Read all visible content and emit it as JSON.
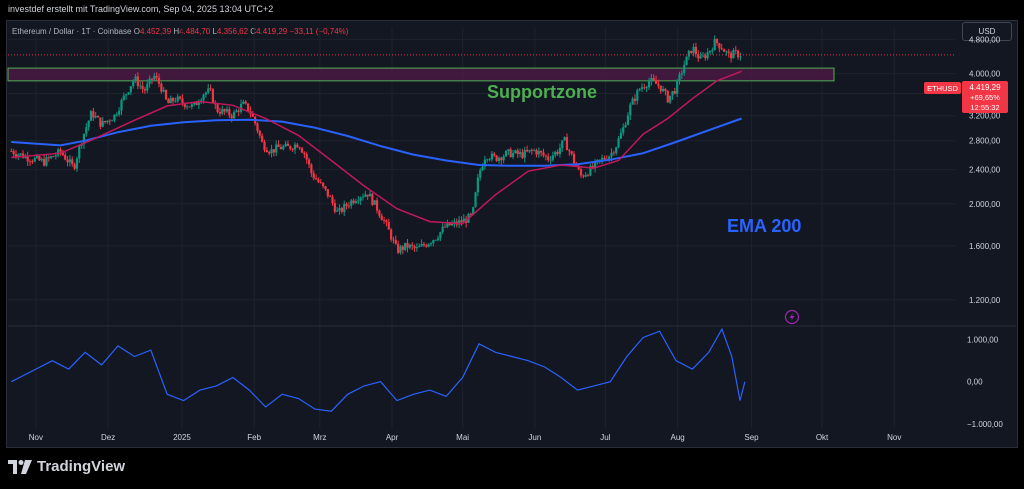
{
  "credit": "investdef erstellt mit TradingView.com, Sep 04, 2025 13:04 UTC+2",
  "symbol": {
    "name": "Ethereum / Dollar · 1T · Coinbase",
    "o_label": "O",
    "o": "4.452,39",
    "h_label": "H",
    "h": "4.484,70",
    "l_label": "L",
    "l": "4.356,62",
    "c_label": "C",
    "c": "4.419,29",
    "change": "−33,11 (−0,74%)"
  },
  "currency_button": "USD",
  "price_badge": {
    "ticker": "ETHUSD",
    "price": "4.419,29",
    "change": "+69,65%",
    "countdown": "12:55:32",
    "color": "#f23645"
  },
  "annotations": {
    "supportzone": "Supportzone",
    "ema": "EMA 200"
  },
  "brand": "TradingView",
  "colors": {
    "up": "#089981",
    "down": "#f23645",
    "ema200": "#2962ff",
    "ema50": "#c2185b",
    "oscillator": "#2962ff",
    "zone_fill": "#4a1942",
    "zone_border": "#4caf50",
    "supportzone_text": "#4caf50",
    "ema_text": "#2962ff"
  },
  "chart_data": {
    "type": "candlestick",
    "price_axis": {
      "ticks": [
        1200,
        1600,
        2000,
        2400,
        2800,
        3200,
        3600,
        4000,
        4800
      ],
      "tick_labels": [
        "1.200,00",
        "1.600,00",
        "2.000,00",
        "2.400,00",
        "2.800,00",
        "3.200,00",
        "3.600,00",
        "4.000,00",
        "4.800,00"
      ],
      "range": [
        1050,
        5100
      ]
    },
    "time_axis": {
      "labels": [
        "Nov",
        "Dez",
        "2025",
        "Feb",
        "Mrz",
        "Apr",
        "Mai",
        "Jun",
        "Jul",
        "Aug",
        "Sep",
        "Okt",
        "Nov"
      ],
      "label_weeks": [
        0,
        4.4,
        8.9,
        13.3,
        17.3,
        21.7,
        26.0,
        30.4,
        34.7,
        39.1,
        43.6,
        47.9,
        52.3
      ]
    },
    "zone": {
      "low": 3850,
      "high": 4120
    },
    "weekly_path": [
      [
        -1.5,
        2650
      ],
      [
        -0.5,
        2560
      ],
      [
        0.5,
        2500
      ],
      [
        1.5,
        2640
      ],
      [
        2.3,
        2420
      ],
      [
        2.8,
        2820
      ],
      [
        3.4,
        3250
      ],
      [
        4.0,
        3050
      ],
      [
        4.8,
        3200
      ],
      [
        5.4,
        3550
      ],
      [
        6.0,
        3900
      ],
      [
        6.6,
        3650
      ],
      [
        7.2,
        3950
      ],
      [
        7.6,
        3750
      ],
      [
        8.0,
        3400
      ],
      [
        8.5,
        3500
      ],
      [
        9.0,
        3420
      ],
      [
        9.6,
        3350
      ],
      [
        10.2,
        3600
      ],
      [
        10.6,
        3650
      ],
      [
        11.0,
        3300
      ],
      [
        11.6,
        3250
      ],
      [
        12.0,
        3200
      ],
      [
        12.6,
        3400
      ],
      [
        13.0,
        3300
      ],
      [
        13.4,
        3050
      ],
      [
        13.8,
        2750
      ],
      [
        14.3,
        2650
      ],
      [
        14.8,
        2700
      ],
      [
        15.4,
        2700
      ],
      [
        16.0,
        2760
      ],
      [
        16.4,
        2600
      ],
      [
        16.8,
        2350
      ],
      [
        17.2,
        2250
      ],
      [
        17.8,
        2100
      ],
      [
        18.4,
        1900
      ],
      [
        19.0,
        2000
      ],
      [
        19.6,
        2080
      ],
      [
        20.2,
        2120
      ],
      [
        20.8,
        1950
      ],
      [
        21.3,
        1800
      ],
      [
        22.0,
        1560
      ],
      [
        22.6,
        1600
      ],
      [
        23.2,
        1570
      ],
      [
        23.8,
        1620
      ],
      [
        24.4,
        1680
      ],
      [
        25.0,
        1780
      ],
      [
        25.6,
        1800
      ],
      [
        26.2,
        1840
      ],
      [
        26.6,
        1880
      ],
      [
        27.0,
        2350
      ],
      [
        27.4,
        2600
      ],
      [
        28.0,
        2550
      ],
      [
        28.8,
        2620
      ],
      [
        29.6,
        2600
      ],
      [
        30.4,
        2660
      ],
      [
        31.2,
        2550
      ],
      [
        31.8,
        2650
      ],
      [
        32.2,
        2800
      ],
      [
        32.8,
        2500
      ],
      [
        33.2,
        2320
      ],
      [
        33.8,
        2400
      ],
      [
        34.4,
        2520
      ],
      [
        35.0,
        2600
      ],
      [
        35.4,
        2750
      ],
      [
        35.8,
        3000
      ],
      [
        36.2,
        3350
      ],
      [
        36.8,
        3700
      ],
      [
        37.4,
        3850
      ],
      [
        38.0,
        3750
      ],
      [
        38.5,
        3500
      ],
      [
        39.0,
        3700
      ],
      [
        39.5,
        4200
      ],
      [
        40.0,
        4600
      ],
      [
        40.5,
        4300
      ],
      [
        41.0,
        4500
      ],
      [
        41.4,
        4750
      ],
      [
        41.8,
        4600
      ],
      [
        42.2,
        4400
      ],
      [
        42.6,
        4450
      ],
      [
        43.0,
        4420
      ]
    ],
    "ema200_path": [
      [
        -1.5,
        2780
      ],
      [
        1.5,
        2730
      ],
      [
        3.0,
        2800
      ],
      [
        5.0,
        2930
      ],
      [
        7.0,
        3030
      ],
      [
        9.0,
        3090
      ],
      [
        11.0,
        3120
      ],
      [
        13.0,
        3130
      ],
      [
        15.0,
        3100
      ],
      [
        17.0,
        3000
      ],
      [
        19.0,
        2870
      ],
      [
        21.0,
        2720
      ],
      [
        23.0,
        2600
      ],
      [
        25.0,
        2520
      ],
      [
        27.0,
        2460
      ],
      [
        29.0,
        2450
      ],
      [
        31.0,
        2450
      ],
      [
        33.0,
        2470
      ],
      [
        35.0,
        2530
      ],
      [
        37.0,
        2620
      ],
      [
        39.0,
        2780
      ],
      [
        41.0,
        2960
      ],
      [
        43.0,
        3150
      ]
    ],
    "ema50_path": [
      [
        -1.5,
        2560
      ],
      [
        1.5,
        2620
      ],
      [
        3.5,
        2820
      ],
      [
        6.0,
        3120
      ],
      [
        8.0,
        3370
      ],
      [
        10.0,
        3450
      ],
      [
        12.0,
        3380
      ],
      [
        14.0,
        3150
      ],
      [
        16.0,
        2880
      ],
      [
        18.0,
        2520
      ],
      [
        20.0,
        2200
      ],
      [
        22.0,
        1950
      ],
      [
        24.0,
        1820
      ],
      [
        26.0,
        1800
      ],
      [
        28.0,
        2100
      ],
      [
        30.0,
        2380
      ],
      [
        32.0,
        2460
      ],
      [
        34.0,
        2420
      ],
      [
        35.5,
        2520
      ],
      [
        37.0,
        2900
      ],
      [
        38.5,
        3150
      ],
      [
        40.0,
        3500
      ],
      [
        41.5,
        3850
      ],
      [
        43.0,
        4050
      ]
    ],
    "oscillator": {
      "ticks": [
        1000,
        0,
        -1000
      ],
      "tick_labels": [
        "1.000,00",
        "0,00",
        "−1.000,00"
      ],
      "range": [
        -1100,
        1300
      ],
      "path": [
        [
          -1.5,
          0
        ],
        [
          0.0,
          300
        ],
        [
          1.0,
          500
        ],
        [
          2.0,
          300
        ],
        [
          3.0,
          700
        ],
        [
          4.0,
          400
        ],
        [
          5.0,
          850
        ],
        [
          6.0,
          600
        ],
        [
          7.0,
          750
        ],
        [
          8.0,
          -300
        ],
        [
          9.0,
          -450
        ],
        [
          10.0,
          -200
        ],
        [
          11.0,
          -100
        ],
        [
          12.0,
          100
        ],
        [
          13.0,
          -200
        ],
        [
          14.0,
          -600
        ],
        [
          15.0,
          -300
        ],
        [
          16.0,
          -400
        ],
        [
          17.0,
          -650
        ],
        [
          18.0,
          -700
        ],
        [
          19.0,
          -300
        ],
        [
          20.0,
          -100
        ],
        [
          21.0,
          0
        ],
        [
          22.0,
          -450
        ],
        [
          23.0,
          -300
        ],
        [
          24.0,
          -200
        ],
        [
          25.0,
          -350
        ],
        [
          26.0,
          100
        ],
        [
          27.0,
          900
        ],
        [
          28.0,
          700
        ],
        [
          29.0,
          600
        ],
        [
          30.0,
          500
        ],
        [
          31.0,
          350
        ],
        [
          32.0,
          100
        ],
        [
          33.0,
          -200
        ],
        [
          34.0,
          -100
        ],
        [
          35.0,
          0
        ],
        [
          36.0,
          600
        ],
        [
          37.0,
          1050
        ],
        [
          38.0,
          1200
        ],
        [
          39.0,
          500
        ],
        [
          40.0,
          300
        ],
        [
          41.0,
          700
        ],
        [
          41.8,
          1250
        ],
        [
          42.4,
          600
        ],
        [
          42.9,
          -450
        ],
        [
          43.2,
          0
        ]
      ]
    }
  }
}
